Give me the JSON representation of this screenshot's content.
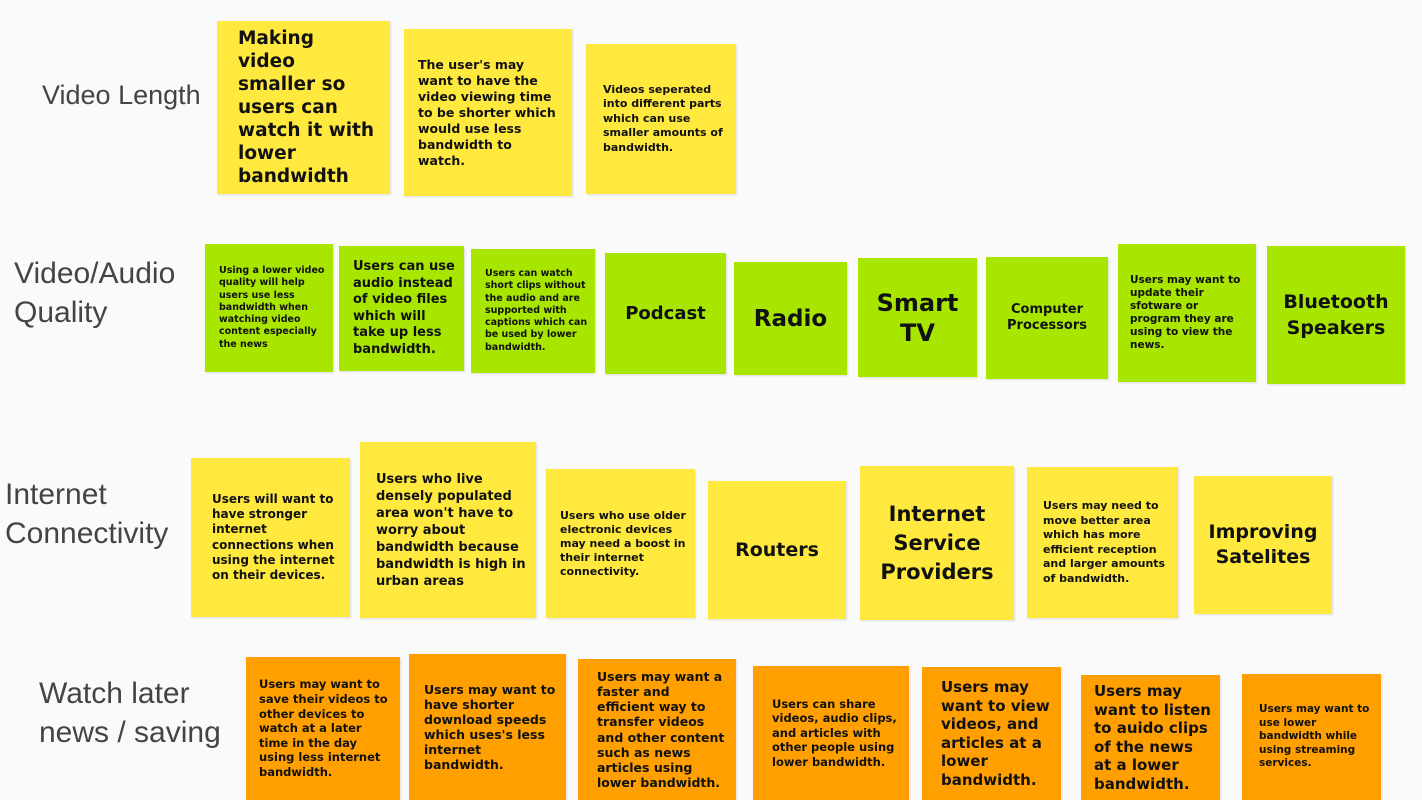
{
  "colors": {
    "yellow": "#ffe93e",
    "green": "#a8e600",
    "orange": "#ff9f00",
    "label": "#444444"
  },
  "rows": {
    "video_length": {
      "label": "Video Length",
      "notes": [
        "Making video smaller so users can watch it with lower bandwidth",
        "The user's may want to have the video viewing time to be shorter which would use less bandwidth to watch.",
        "Videos seperated into different parts which can use smaller amounts of bandwidth."
      ]
    },
    "quality": {
      "label": "Video/Audio\nQuality",
      "notes": [
        "Using a lower video quality will help users use less bandwidth when watching video content especially the news",
        "Users can use audio instead of video files which will take up less bandwidth.",
        "Users can watch short clips without the audio and are supported with captions which can be used by lower bandwidth.",
        "Podcast",
        "Radio",
        "Smart TV",
        "Computer Processors",
        "Users may want to update their sfotware or program they are using to view the news.",
        "Bluetooth Speakers"
      ]
    },
    "connectivity": {
      "label": "Internet\nConnectivity",
      "notes": [
        "Users will want to have stronger internet connections when using the internet on their devices.",
        "Users who live densely populated area won't have to worry about bandwidth because bandwidth is high in urban areas",
        "Users who use older electronic devices may need a boost in their internet connectivity.",
        "Routers",
        "Internet Service Providers",
        "Users may need to move better area which has more efficient reception and larger amounts of bandwidth.",
        "Improving Satelites"
      ]
    },
    "watch_later": {
      "label": "Watch later\nnews / saving",
      "notes": [
        "Users may want to save their videos to other devices to watch at a later time in the day using less internet bandwidth.",
        "Users may want to have shorter download speeds which uses's less internet bandwidth.",
        "Users may want a faster and efficient way to transfer videos and other content such as news articles using lower bandwidth.",
        "Users can share videos, audio clips, and articles with other people using lower bandwidth.",
        "Users may want to view videos, and articles at a lower bandwidth.",
        "Users may want to listen to auido clips of the news at a lower bandwidth.",
        "Users may want to use lower bandwidth while using streaming services."
      ]
    }
  }
}
